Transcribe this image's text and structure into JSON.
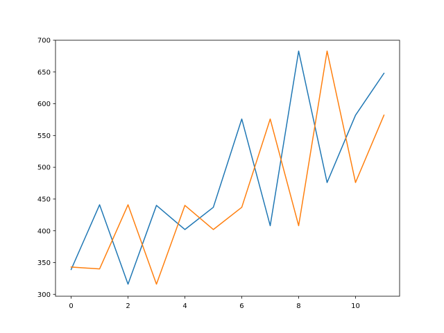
{
  "chart_data": {
    "type": "line",
    "title": "",
    "xlabel": "",
    "ylabel": "",
    "xlim": [
      -0.55,
      11.55
    ],
    "ylim": [
      297,
      700
    ],
    "xticks": [
      0,
      2,
      4,
      6,
      8,
      10
    ],
    "yticks": [
      300,
      350,
      400,
      450,
      500,
      550,
      600,
      650,
      700
    ],
    "grid": false,
    "legend": "none",
    "x": [
      0,
      1,
      2,
      3,
      4,
      5,
      6,
      7,
      8,
      9,
      10,
      11
    ],
    "series": [
      {
        "color": "#1f77b4",
        "values": [
          339,
          441,
          316,
          440,
          402,
          437,
          576,
          408,
          683,
          476,
          582,
          648
        ]
      },
      {
        "color": "#ff7f0e",
        "values": [
          343,
          340,
          441,
          316,
          440,
          402,
          437,
          576,
          408,
          683,
          476,
          582
        ]
      }
    ]
  }
}
